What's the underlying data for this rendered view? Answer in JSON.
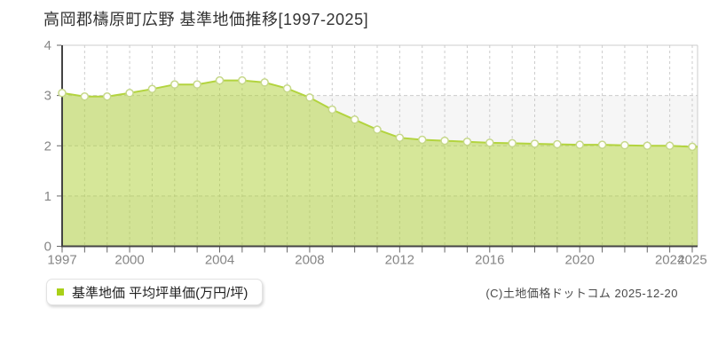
{
  "title": "高岡郡檮原町広野 基準地価推移[1997-2025]",
  "legend": {
    "label": "基準地価 平均坪単価(万円/坪)"
  },
  "footer": {
    "copyright": "(C)土地価格ドットコム 2025-12-20"
  },
  "colors": {
    "line": "#b3d43f",
    "fill": "rgba(173,208,52,0.5)",
    "marker_fill": "#fffefa",
    "marker_stroke": "#c6d88a",
    "legend_marker": "#a9d018",
    "grid": "#cccccc",
    "band_gray": "#f6f6f6",
    "band_white": "#ffffff",
    "border": "#cccccc",
    "axis": "#444444",
    "tick": "#666666",
    "tick_label": "#868686",
    "title_text": "#333333"
  },
  "chart_data": {
    "type": "area",
    "title": "高岡郡檮原町広野 基準地価推移[1997-2025]",
    "series": [
      {
        "name": "基準地価 平均坪単価(万円/坪)",
        "x": [
          1997,
          1998,
          1999,
          2000,
          2001,
          2002,
          2003,
          2004,
          2005,
          2006,
          2007,
          2008,
          2009,
          2010,
          2011,
          2012,
          2013,
          2014,
          2015,
          2016,
          2017,
          2018,
          2019,
          2020,
          2021,
          2022,
          2023,
          2024,
          2025
        ],
        "values": [
          3.05,
          2.98,
          2.98,
          3.05,
          3.13,
          3.22,
          3.22,
          3.3,
          3.3,
          3.26,
          3.14,
          2.96,
          2.72,
          2.52,
          2.32,
          2.16,
          2.12,
          2.1,
          2.08,
          2.06,
          2.05,
          2.04,
          2.03,
          2.02,
          2.02,
          2.01,
          2.0,
          2.0,
          1.98
        ]
      }
    ],
    "xlabel": "",
    "ylabel": "",
    "ylim": [
      0,
      4
    ],
    "yticks": [
      0,
      1,
      2,
      3,
      4
    ],
    "xticks_labeled": [
      1997,
      2000,
      2004,
      2008,
      2012,
      2016,
      2020,
      2024,
      2025
    ],
    "xgrid_every_year": true,
    "grid": "dashed",
    "legend_position": "bottom-left",
    "unit": "万円/坪"
  }
}
